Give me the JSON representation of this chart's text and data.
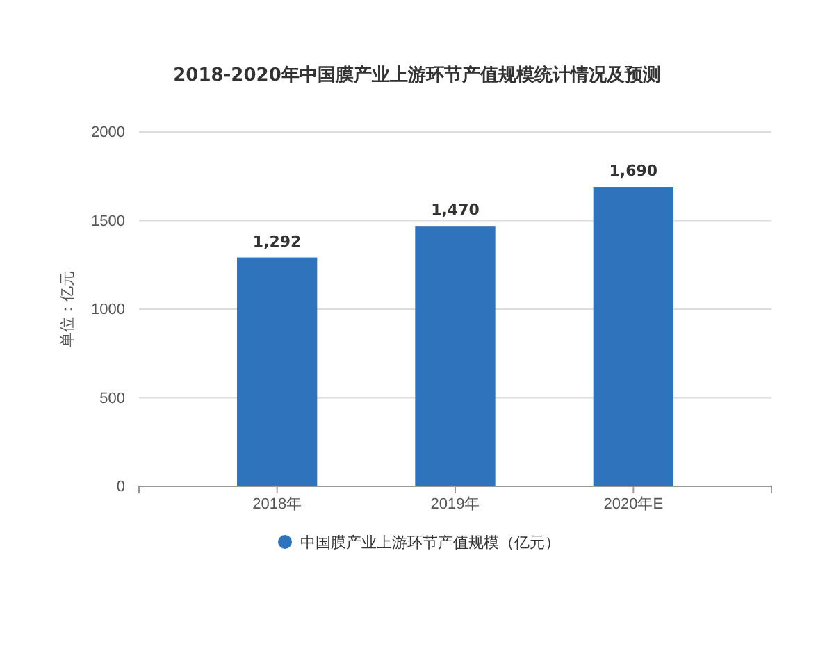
{
  "chart_data": {
    "type": "bar",
    "title": "2018-2020年中国膜产业上游环节产值规模统计情况及预测",
    "ylabel": "单位：亿元",
    "categories": [
      "2018年",
      "2019年",
      "2020年E"
    ],
    "series": [
      {
        "name": "中国膜产业上游环节产值规模（亿元）",
        "color": "#2f73bd",
        "values": [
          1292,
          1470,
          1690
        ]
      }
    ],
    "ylim": [
      0,
      2000
    ],
    "yticks": [
      0,
      500,
      1000,
      1500,
      2000
    ],
    "grid": "y",
    "legend": "bottom",
    "value_labels": [
      "1,292",
      "1,470",
      "1,690"
    ]
  }
}
